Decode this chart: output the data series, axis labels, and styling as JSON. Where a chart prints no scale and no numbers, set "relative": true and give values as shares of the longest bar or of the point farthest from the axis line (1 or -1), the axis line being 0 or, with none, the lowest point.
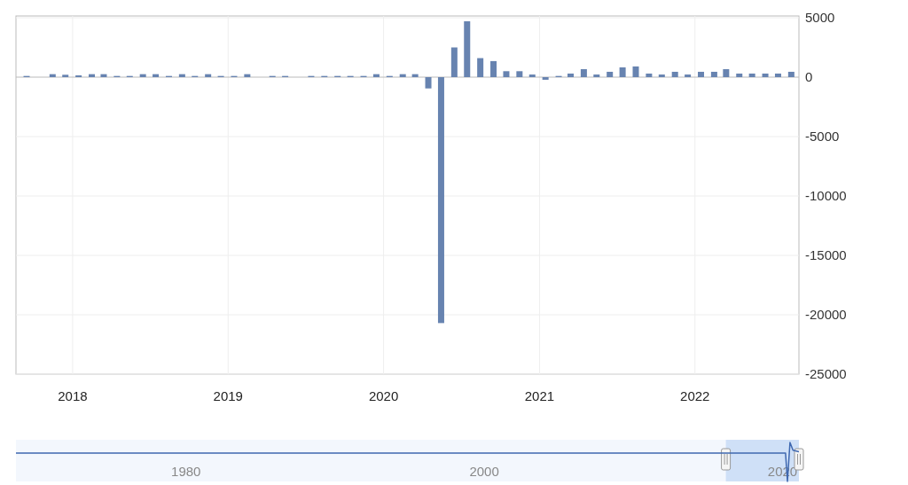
{
  "chart_data": [
    {
      "type": "bar",
      "x": [
        "2017-09-15",
        "2017-10-15",
        "2017-11-15",
        "2017-12-15",
        "2018-01-15",
        "2018-02-15",
        "2018-03-15",
        "2018-04-15",
        "2018-05-15",
        "2018-06-15",
        "2018-07-15",
        "2018-08-15",
        "2018-09-15",
        "2018-10-15",
        "2018-11-15",
        "2018-12-15",
        "2019-01-15",
        "2019-02-15",
        "2019-03-15",
        "2019-04-15",
        "2019-05-15",
        "2019-06-15",
        "2019-07-15",
        "2019-08-15",
        "2019-09-15",
        "2019-10-15",
        "2019-11-15",
        "2019-12-15",
        "2020-01-15",
        "2020-02-15",
        "2020-03-15",
        "2020-04-15",
        "2020-05-15",
        "2020-06-15",
        "2020-07-15",
        "2020-08-15",
        "2020-09-15",
        "2020-10-15",
        "2020-11-15",
        "2020-12-15",
        "2021-01-15",
        "2021-02-15",
        "2021-03-15",
        "2021-04-15",
        "2021-05-15",
        "2021-06-15",
        "2021-07-15",
        "2021-08-15",
        "2021-09-15",
        "2021-10-15",
        "2021-11-15",
        "2021-12-15",
        "2022-01-15",
        "2022-02-15",
        "2022-03-15",
        "2022-04-15",
        "2022-05-15",
        "2022-06-15",
        "2022-07-15",
        "2022-08-15"
      ],
      "values": [
        100,
        0,
        250,
        200,
        150,
        250,
        250,
        100,
        100,
        250,
        250,
        100,
        250,
        100,
        250,
        100,
        100,
        250,
        0,
        100,
        100,
        0,
        100,
        100,
        100,
        100,
        100,
        250,
        100,
        250,
        250,
        -950,
        -20700,
        2500,
        4700,
        1600,
        1350,
        500,
        500,
        220,
        -220,
        100,
        300,
        670,
        220,
        450,
        820,
        900,
        300,
        220,
        450,
        220,
        450,
        450,
        670,
        300,
        300,
        300,
        300,
        450
      ],
      "color": "#6783b0",
      "xlim": [
        "2017-08-21",
        "2022-09-02"
      ],
      "xticks": [
        "2018",
        "2019",
        "2020",
        "2021",
        "2022"
      ],
      "ylim": [
        -25000,
        5000
      ],
      "yticks": [
        5000,
        0,
        -5000,
        -10000,
        -15000,
        -20000,
        -25000
      ],
      "grid": true
    },
    {
      "type": "line",
      "relative": true,
      "x": [
        1968.6,
        1980,
        1990,
        2000,
        2010,
        2020.2,
        2020.33,
        2020.5,
        2020.7,
        2021.1
      ],
      "values": [
        0.73,
        0.73,
        0.73,
        0.73,
        0.73,
        0.73,
        0,
        1,
        0.8,
        0.76
      ],
      "color": "#3f68b0",
      "xlim": [
        1968.6,
        2021.1
      ],
      "xticks": [
        1980,
        2000,
        2020
      ],
      "tick_labels": "x",
      "bands": [
        {
          "axis": "x",
          "from": 2016.2,
          "to": 2021.1,
          "color": "#cfe0f7"
        }
      ]
    }
  ]
}
